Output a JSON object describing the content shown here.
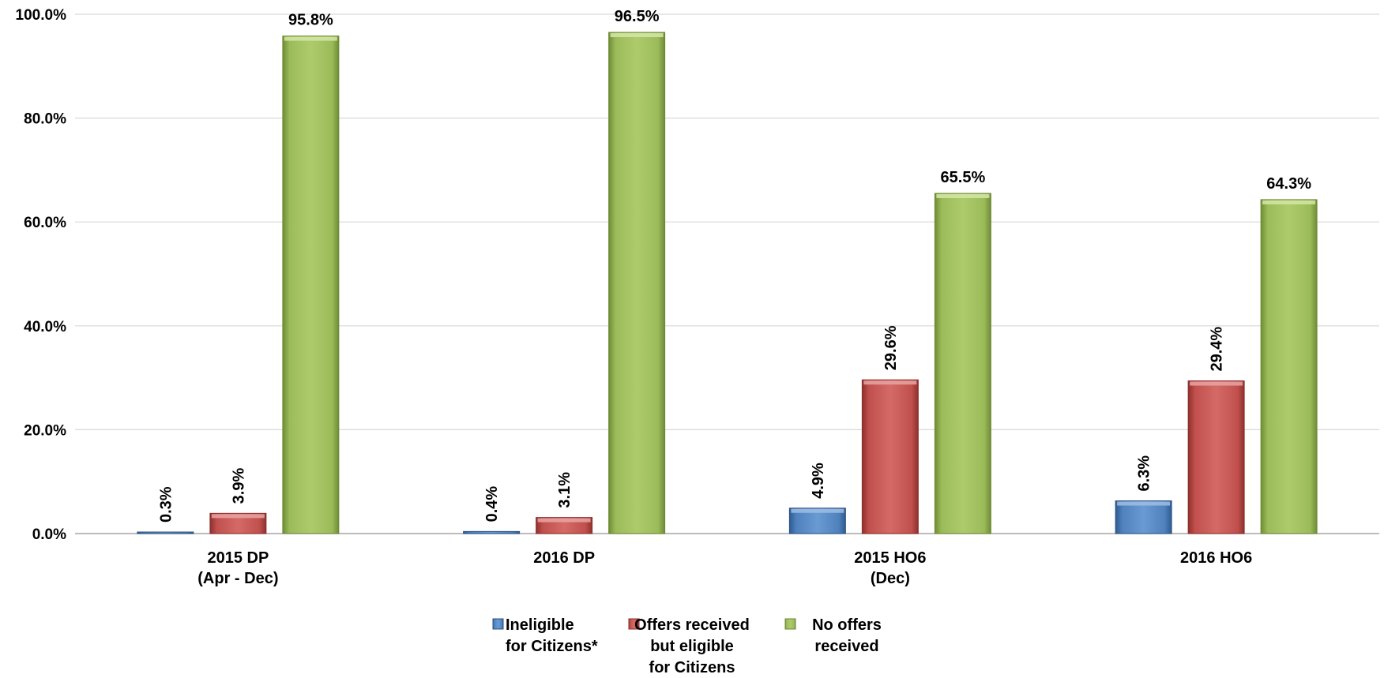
{
  "chart_data": {
    "type": "bar",
    "title": "",
    "xlabel": "",
    "ylabel": "",
    "ylim": [
      0,
      100
    ],
    "yticks": [
      0,
      20,
      40,
      60,
      80,
      100
    ],
    "ytick_format": "percent_1dp",
    "grid": true,
    "legend_position": "bottom",
    "categories": [
      [
        "2015 DP",
        "(Apr - Dec)"
      ],
      [
        "2016 DP"
      ],
      [
        "2015 HO6",
        "(Dec)"
      ],
      [
        "2016 HO6"
      ]
    ],
    "series": [
      {
        "name": [
          "Ineligible",
          "for Citizens*"
        ],
        "color": "#4f81bd",
        "values": [
          0.3,
          0.4,
          4.9,
          6.3
        ]
      },
      {
        "name": [
          "Offers received",
          "but eligible",
          "for Citizens"
        ],
        "color": "#c0504d",
        "values": [
          3.9,
          3.1,
          29.6,
          29.4
        ]
      },
      {
        "name": [
          "No offers",
          "received"
        ],
        "color": "#9bbb59",
        "values": [
          95.8,
          96.5,
          65.5,
          64.3
        ]
      }
    ],
    "data_labels": [
      [
        "0.3%",
        "0.4%",
        "4.9%",
        "6.3%"
      ],
      [
        "3.9%",
        "3.1%",
        "29.6%",
        "29.4%"
      ],
      [
        "95.8%",
        "96.5%",
        "65.5%",
        "64.3%"
      ]
    ],
    "data_label_rotated": [
      [
        true,
        true,
        true,
        true
      ],
      [
        true,
        true,
        true,
        true
      ],
      [
        false,
        false,
        false,
        false
      ]
    ]
  }
}
